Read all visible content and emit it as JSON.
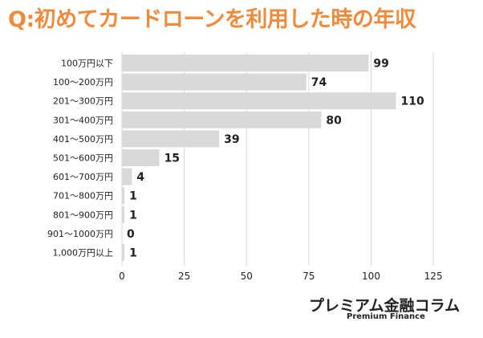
{
  "chart_data": {
    "type": "bar",
    "orientation": "horizontal",
    "title": "Q:初めてカードローンを利用した時の年収",
    "categories": [
      "100万円以下",
      "100～200万円",
      "201～300万円",
      "301～400万円",
      "401～500万円",
      "501～600万円",
      "601～700万円",
      "701～800万円",
      "801～900万円",
      "901～1000万円",
      "1,000万円以上"
    ],
    "values": [
      99,
      74,
      110,
      80,
      39,
      15,
      4,
      1,
      1,
      0,
      1
    ],
    "xlim": [
      0,
      125
    ],
    "xticks": [
      0,
      25,
      50,
      75,
      100,
      125
    ],
    "xlabel": "",
    "ylabel": "",
    "grid": "vertical",
    "colors": {
      "bar": "#d9d9d9",
      "grid": "#d9d9d9",
      "title": "#f08a3c",
      "text": "#222222"
    }
  },
  "brand": {
    "name": "プレミアム金融コラム",
    "subtitle": "Premium Finance"
  }
}
